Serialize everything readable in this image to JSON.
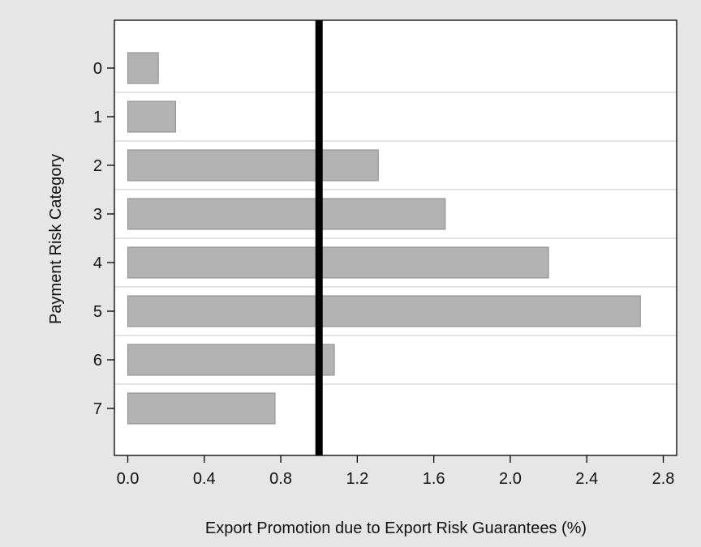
{
  "chart_data": {
    "type": "bar",
    "orientation": "horizontal",
    "categories": [
      "0",
      "1",
      "2",
      "3",
      "4",
      "5",
      "6",
      "7"
    ],
    "values": [
      0.16,
      0.25,
      1.31,
      1.66,
      2.2,
      2.68,
      1.08,
      0.77
    ],
    "xlabel": "Export Promotion due to Export Risk Guarantees (%)",
    "ylabel": "Payment Risk Category",
    "xticks": [
      "0.0",
      "0.4",
      "0.8",
      "1.2",
      "1.6",
      "2.0",
      "2.4",
      "2.8"
    ],
    "xlim": [
      -0.07,
      2.87
    ],
    "reference_line": {
      "x": 1.0,
      "color": "#000000"
    },
    "bar_color": "#b3b3b3",
    "grid": "horizontal lines between categories",
    "legend": "none"
  }
}
